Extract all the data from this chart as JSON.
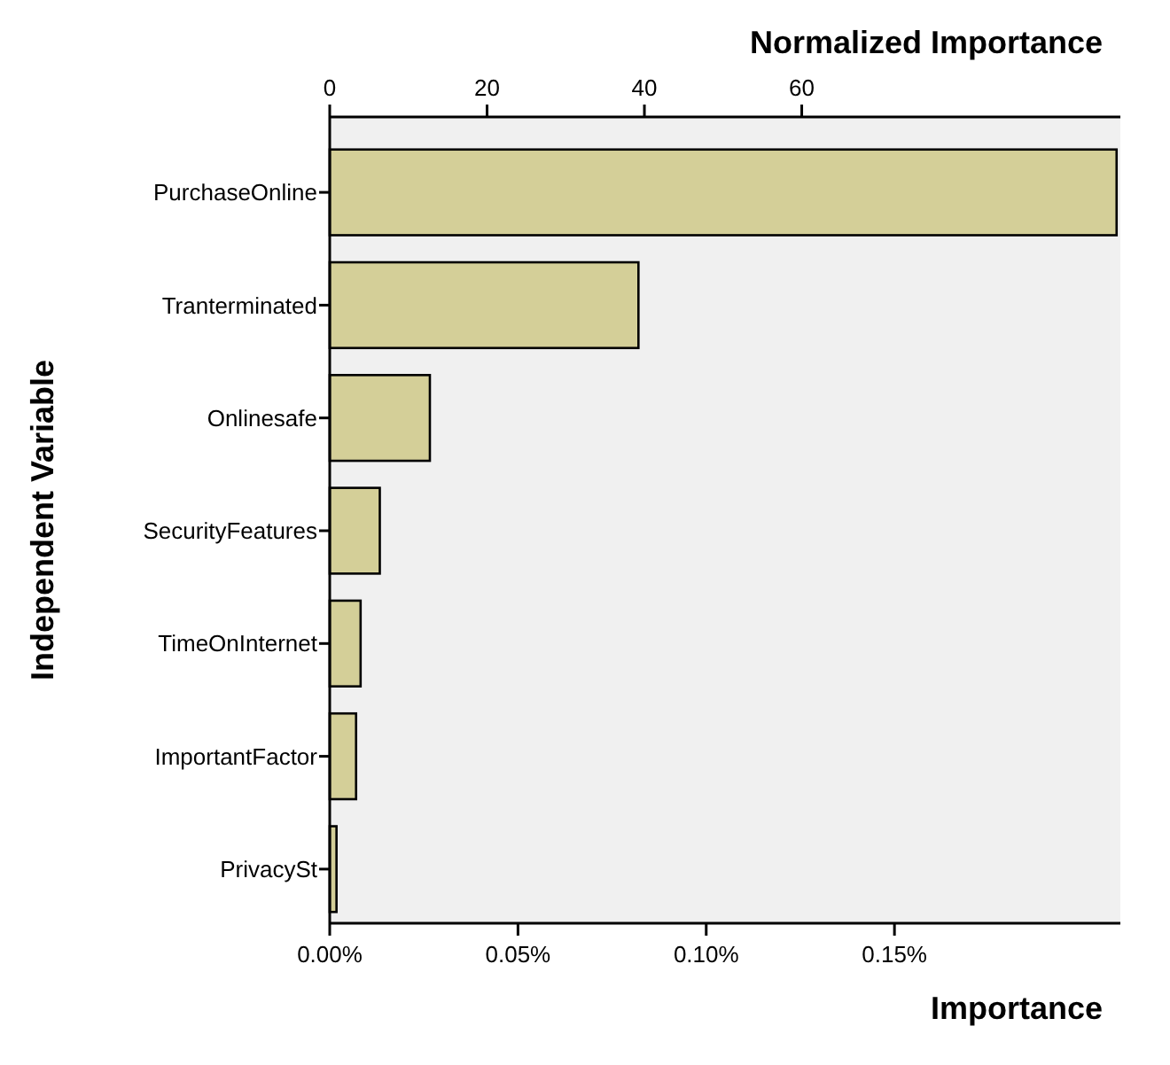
{
  "chart_data": {
    "type": "bar",
    "orientation": "horizontal",
    "xlabel": "Importance",
    "x2label": "Normalized Importance",
    "ylabel": "Independent Variable",
    "categories": [
      "PurchaseOnline",
      "Tranterminated",
      "Onlinesafe",
      "SecurityFeatures",
      "TimeOnInternet",
      "ImportantFactor",
      "PrivacySt"
    ],
    "values": [
      0.209,
      0.082,
      0.0266,
      0.0133,
      0.0082,
      0.007,
      0.0018
    ],
    "color": "#d4cf98",
    "xlim": [
      0,
      0.21
    ],
    "xticks": [
      {
        "value": 0,
        "label": "0.00%"
      },
      {
        "value": 0.05,
        "label": "0.05%"
      },
      {
        "value": 0.1,
        "label": "0.10%"
      },
      {
        "value": 0.15,
        "label": "0.15%"
      }
    ],
    "x2lim": [
      0,
      100.5
    ],
    "x2ticks": [
      0,
      20,
      40,
      60
    ]
  }
}
